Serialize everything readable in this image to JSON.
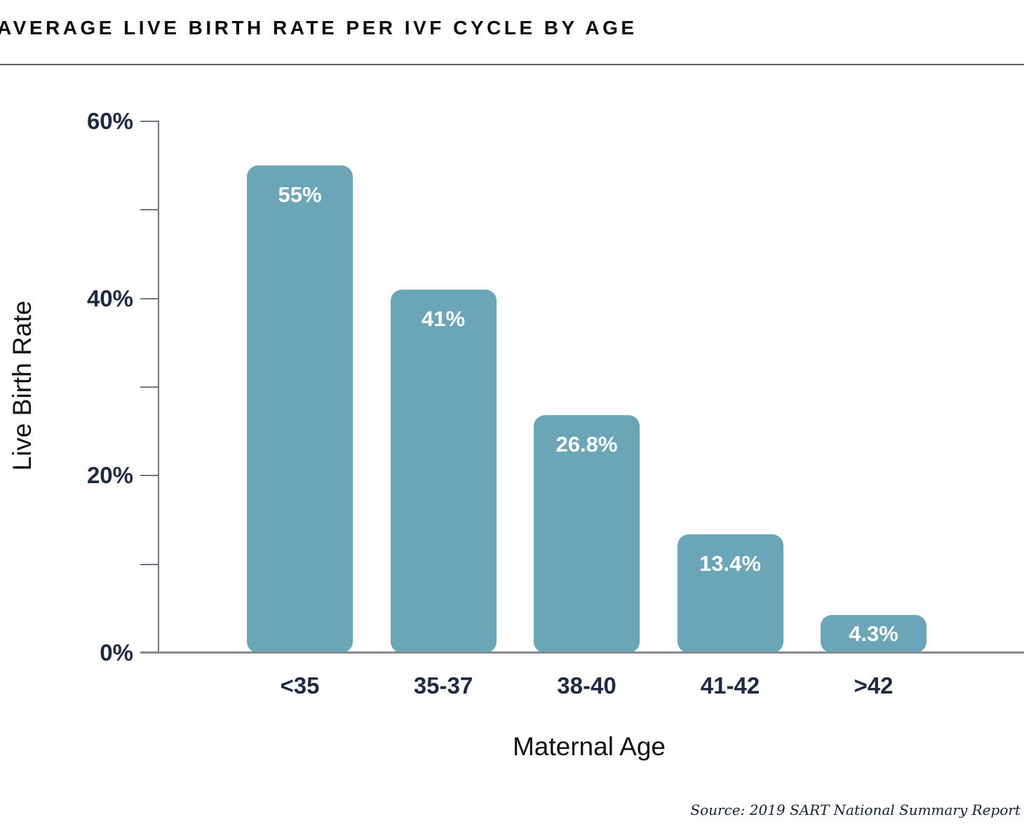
{
  "title": "AVERAGE LIVE BIRTH RATE PER IVF CYCLE BY AGE",
  "source_note": "Source: 2019 SART National Summary Report",
  "chart_data": {
    "type": "bar",
    "title": "AVERAGE LIVE BIRTH RATE PER IVF CYCLE BY AGE",
    "categories": [
      "<35",
      "35-37",
      "38-40",
      "41-42",
      ">42"
    ],
    "values": [
      55,
      41,
      26.8,
      13.4,
      4.3
    ],
    "bar_labels": [
      "55%",
      "41%",
      "26.8%",
      "13.4%",
      "4.3%"
    ],
    "xlabel": "Maternal Age",
    "ylabel": "Live Birth Rate",
    "ylim": [
      0,
      60
    ],
    "yticks": [
      {
        "value": 60,
        "label": "60%"
      },
      {
        "value": 50,
        "label": ""
      },
      {
        "value": 40,
        "label": "40%"
      },
      {
        "value": 30,
        "label": ""
      },
      {
        "value": 20,
        "label": "20%"
      },
      {
        "value": 10,
        "label": ""
      },
      {
        "value": 0,
        "label": "0%"
      }
    ],
    "grid": false,
    "legend": null,
    "colors": {
      "bar": "#6AA6B8",
      "bar_value_label": "#FFFFFF",
      "axis_text": "#1F2A40",
      "axis_line": "#70777F",
      "x_axis_line": "#86898F",
      "title_text": "#0B0B0B",
      "divider": "#5F6062",
      "source_text": "#16202F"
    }
  }
}
